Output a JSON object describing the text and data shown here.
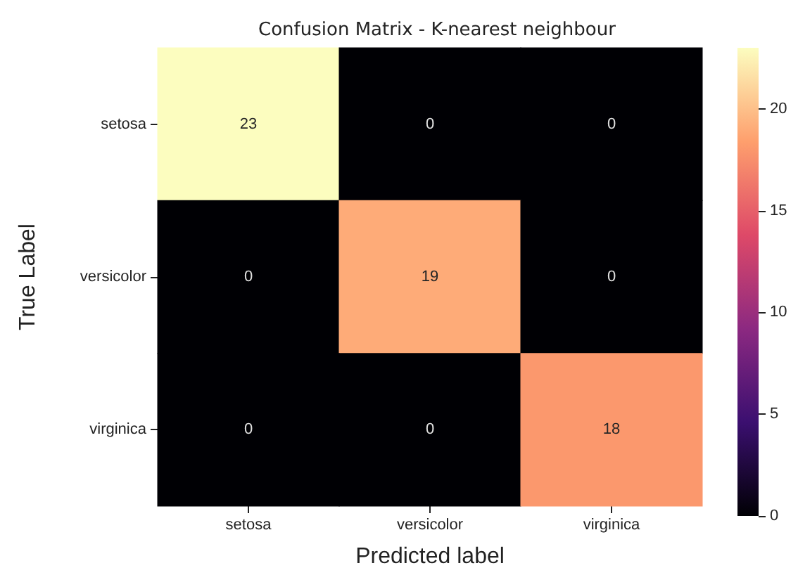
{
  "chart_data": {
    "type": "heatmap",
    "title": "Confusion Matrix - K-nearest neighbour",
    "xlabel": "Predicted label",
    "ylabel": "True Label",
    "categories": [
      "setosa",
      "versicolor",
      "virginica"
    ],
    "y_categories": [
      "setosa",
      "versicolor",
      "virginica"
    ],
    "cells": [
      [
        23,
        0,
        0
      ],
      [
        0,
        19,
        0
      ],
      [
        0,
        0,
        18
      ]
    ],
    "clim": [
      0,
      23
    ],
    "cticks": [
      0,
      5,
      10,
      15,
      20
    ],
    "data_labels": true
  }
}
